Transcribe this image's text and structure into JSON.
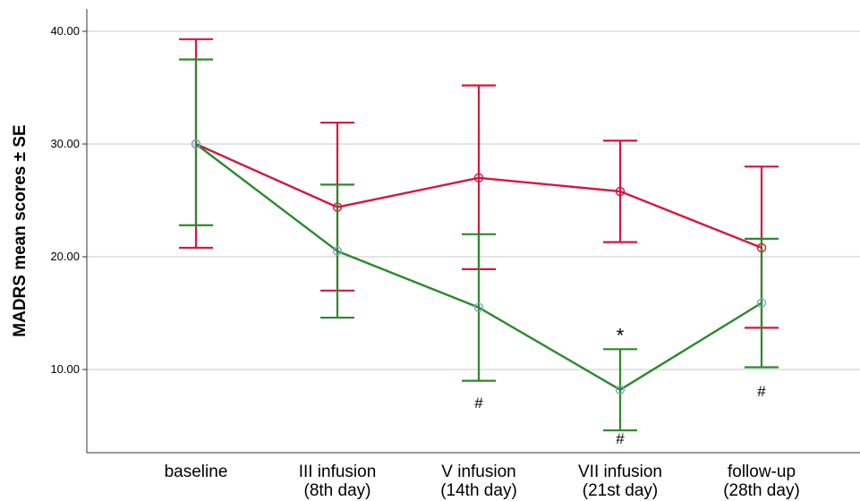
{
  "chart_data": {
    "type": "line",
    "ylabel": "MADRS mean scores ± SE",
    "xlabel": "",
    "title": "",
    "ylim": [
      3.5,
      41.5
    ],
    "yticks": [
      "10.00",
      "20.00",
      "30.00",
      "40.00"
    ],
    "ytick_values": [
      10,
      20,
      30,
      40
    ],
    "categories": [
      [
        "baseline"
      ],
      [
        "III infusion",
        "(8th day)"
      ],
      [
        "V infusion",
        "(14th day)"
      ],
      [
        "VII infusion",
        "(21st day)"
      ],
      [
        "follow-up",
        "(28th day)"
      ]
    ],
    "grid": "horizontal",
    "series": [
      {
        "color": "#d6163f",
        "values": [
          30.0,
          24.4,
          27.0,
          25.8,
          20.8
        ],
        "lower": [
          20.8,
          17.0,
          18.9,
          21.3,
          13.7
        ],
        "upper": [
          39.3,
          31.9,
          35.2,
          30.3,
          28.0
        ]
      },
      {
        "color": "#2b8a2b",
        "values": [
          30.0,
          20.5,
          15.5,
          8.2,
          15.9
        ],
        "lower": [
          22.8,
          14.6,
          9.0,
          4.6,
          10.2
        ],
        "upper": [
          37.5,
          26.4,
          22.0,
          11.8,
          21.6
        ]
      }
    ],
    "annotations": [
      {
        "text": "#",
        "category": 2,
        "y": 7.0
      },
      {
        "text": "*",
        "category": 3,
        "y": 12.8
      },
      {
        "text": "#",
        "category": 3,
        "y": 3.8
      },
      {
        "text": "#",
        "category": 4,
        "y": 8.0
      }
    ]
  }
}
